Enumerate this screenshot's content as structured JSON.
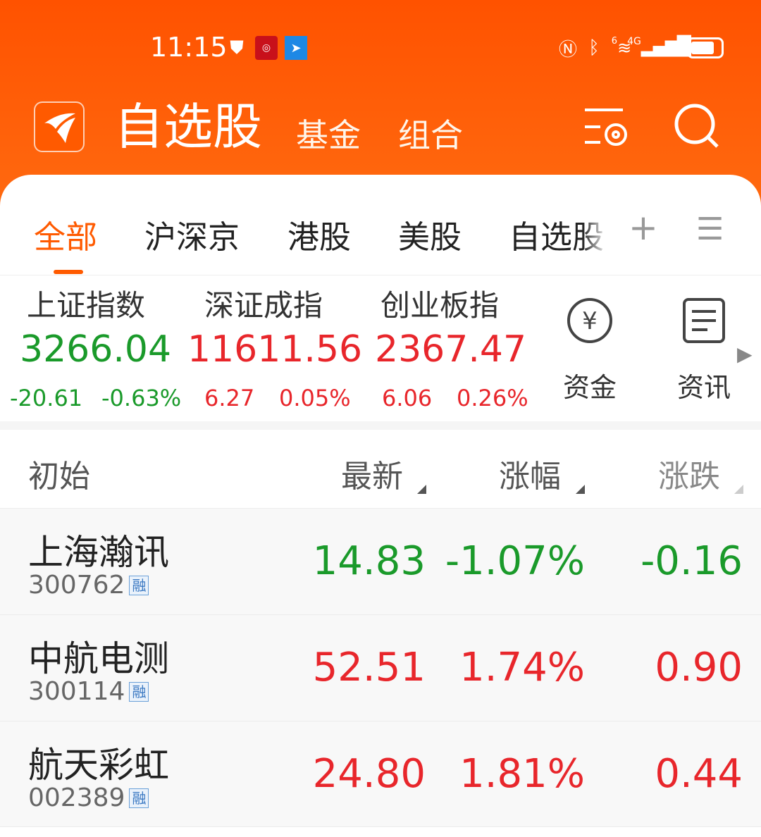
{
  "status_bar": {
    "time": "11:15",
    "network": "4G",
    "wifi_badge": "6"
  },
  "header": {
    "title": "自选股",
    "links": [
      "基金",
      "组合"
    ],
    "icons": [
      "watchlist-settings-icon",
      "search-icon"
    ]
  },
  "tabs": {
    "items": [
      "全部",
      "沪深京",
      "港股",
      "美股",
      "自选股"
    ],
    "active": 0,
    "add_icon": "plus-icon",
    "menu_icon": "menu-icon"
  },
  "indices": [
    {
      "name": "上证指数",
      "value": "3266.04",
      "change": "-20.61",
      "pct": "-0.63%",
      "trend": "down"
    },
    {
      "name": "深证成指",
      "value": "11611.56",
      "change": "6.27",
      "pct": "0.05%",
      "trend": "up"
    },
    {
      "name": "创业板指",
      "value": "2367.47",
      "change": "6.06",
      "pct": "0.26%",
      "trend": "up"
    }
  ],
  "quick_links": [
    {
      "label": "资金",
      "icon": "yuan-icon"
    },
    {
      "label": "资讯",
      "icon": "news-icon"
    }
  ],
  "columns": {
    "name": "初始",
    "latest": "最新",
    "pct": "涨幅",
    "change": "涨跌"
  },
  "stocks": [
    {
      "name": "上海瀚讯",
      "code": "300762",
      "tag": "融",
      "latest": "14.83",
      "pct": "-1.07%",
      "change": "-0.16",
      "trend": "down"
    },
    {
      "name": "中航电测",
      "code": "300114",
      "tag": "融",
      "latest": "52.51",
      "pct": "1.74%",
      "change": "0.90",
      "trend": "up"
    },
    {
      "name": "航天彩虹",
      "code": "002389",
      "tag": "融",
      "latest": "24.80",
      "pct": "1.81%",
      "change": "0.44",
      "trend": "up"
    }
  ],
  "colors": {
    "brand": "#ff5a00",
    "up": "#e8262b",
    "down": "#1a9a2a"
  }
}
